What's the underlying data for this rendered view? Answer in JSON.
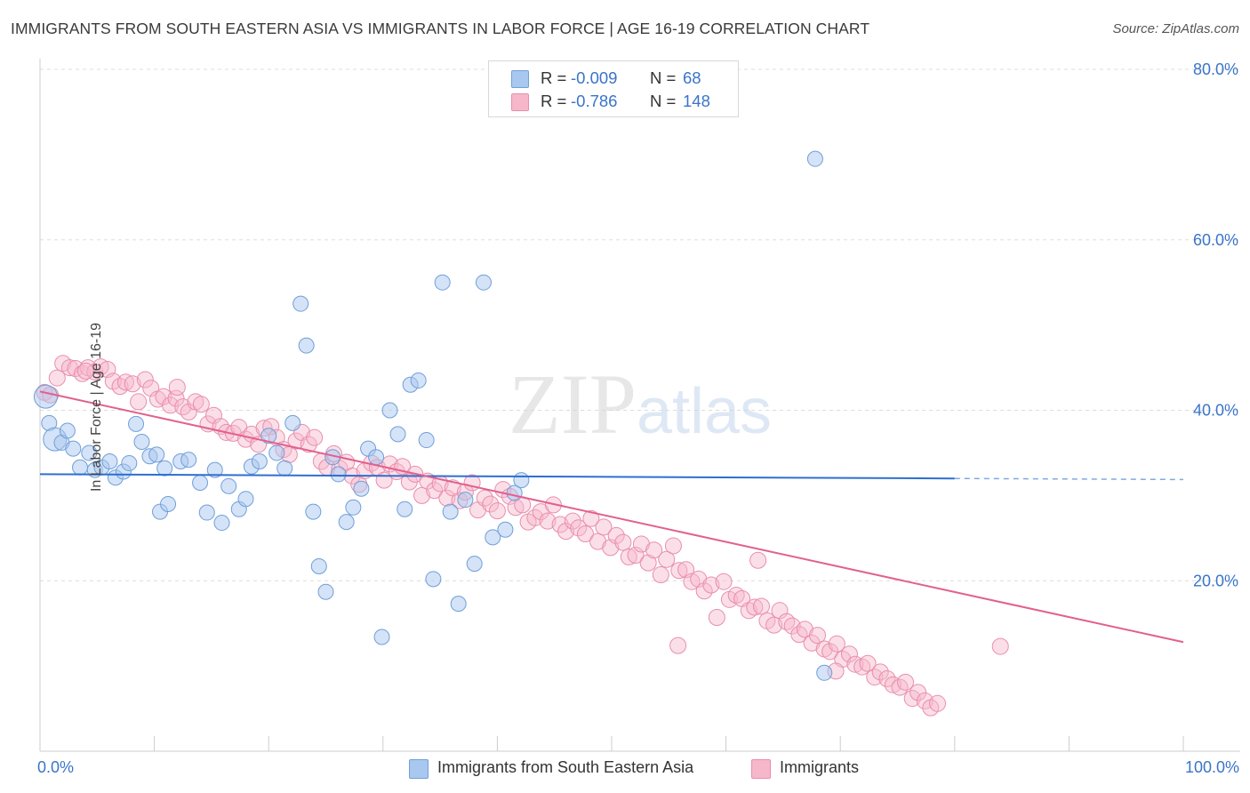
{
  "title": "IMMIGRANTS FROM SOUTH EASTERN ASIA VS IMMIGRANTS IN LABOR FORCE | AGE 16-19 CORRELATION CHART",
  "source": "Source: ZipAtlas.com",
  "watermark": "ZIPatlas",
  "colors": {
    "blue_fill": "#a9c8ef",
    "blue_stroke": "#6f9fd9",
    "blue_line": "#2d6fd0",
    "pink_fill": "#f6b7cb",
    "pink_stroke": "#e98eab",
    "pink_line": "#e2608e",
    "tick_label": "#3a74c9",
    "grid": "#dddddd"
  },
  "legend": {
    "rows": [
      {
        "r_label": "R =",
        "r_value": "-0.009",
        "n_label": "N =",
        "n_value": "68"
      },
      {
        "r_label": "R =",
        "r_value": "-0.786",
        "n_label": "N =",
        "n_value": "148"
      }
    ]
  },
  "bottom_legend": {
    "series1": "Immigrants from South Eastern Asia",
    "series2": "Immigrants"
  },
  "x_axis": {
    "min_label": "0.0%",
    "max_label": "100.0%"
  },
  "chart_data": {
    "type": "scatter",
    "title": "IMMIGRANTS FROM SOUTH EASTERN ASIA VS IMMIGRANTS IN LABOR FORCE | AGE 16-19 CORRELATION CHART",
    "xlabel": "",
    "ylabel": "In Labor Force | Age 16-19",
    "xlim": [
      0,
      100
    ],
    "ylim": [
      0,
      80
    ],
    "y_ticks": [
      20,
      40,
      60,
      80
    ],
    "y_tick_labels": [
      "20.0%",
      "40.0%",
      "60.0%",
      "80.0%"
    ],
    "x_tick_labels": [
      "0.0%",
      "100.0%"
    ],
    "grid": true,
    "legend_position": "top-center",
    "series": [
      {
        "name": "Immigrants from South Eastern Asia",
        "color": "#a9c8ef",
        "trend": {
          "x": [
            0,
            80
          ],
          "y": [
            32.5,
            32.0
          ],
          "dashed_extension_to": 100
        },
        "points": [
          [
            0.5,
            41.6
          ],
          [
            0.8,
            38.5
          ],
          [
            1.3,
            36.6
          ],
          [
            1.9,
            36.2
          ],
          [
            2.4,
            37.6
          ],
          [
            2.9,
            35.5
          ],
          [
            3.5,
            33.3
          ],
          [
            4.3,
            35.0
          ],
          [
            4.8,
            33.0
          ],
          [
            5.4,
            33.3
          ],
          [
            6.1,
            34.0
          ],
          [
            6.6,
            32.1
          ],
          [
            7.3,
            32.8
          ],
          [
            7.8,
            33.8
          ],
          [
            8.4,
            38.4
          ],
          [
            8.9,
            36.3
          ],
          [
            9.6,
            34.6
          ],
          [
            10.2,
            34.8
          ],
          [
            10.5,
            28.1
          ],
          [
            10.9,
            33.2
          ],
          [
            11.2,
            29.0
          ],
          [
            12.3,
            34.0
          ],
          [
            13.0,
            34.2
          ],
          [
            14.0,
            31.5
          ],
          [
            14.6,
            28.0
          ],
          [
            15.3,
            33.0
          ],
          [
            15.9,
            26.8
          ],
          [
            16.5,
            31.1
          ],
          [
            17.4,
            28.4
          ],
          [
            18.0,
            29.6
          ],
          [
            18.5,
            33.4
          ],
          [
            19.2,
            34.0
          ],
          [
            20.0,
            37.0
          ],
          [
            20.7,
            35.0
          ],
          [
            21.4,
            33.2
          ],
          [
            22.1,
            38.5
          ],
          [
            22.8,
            52.5
          ],
          [
            23.3,
            47.6
          ],
          [
            23.9,
            28.1
          ],
          [
            24.4,
            21.7
          ],
          [
            25.0,
            18.7
          ],
          [
            25.6,
            34.5
          ],
          [
            26.1,
            32.5
          ],
          [
            26.8,
            26.9
          ],
          [
            27.4,
            28.6
          ],
          [
            28.1,
            30.8
          ],
          [
            28.7,
            35.5
          ],
          [
            29.4,
            34.5
          ],
          [
            29.9,
            13.4
          ],
          [
            30.6,
            40.0
          ],
          [
            31.3,
            37.2
          ],
          [
            31.9,
            28.4
          ],
          [
            32.4,
            43.0
          ],
          [
            33.1,
            43.5
          ],
          [
            33.8,
            36.5
          ],
          [
            34.4,
            20.2
          ],
          [
            35.2,
            55.0
          ],
          [
            35.9,
            28.1
          ],
          [
            36.6,
            17.3
          ],
          [
            37.2,
            29.5
          ],
          [
            38.0,
            22.0
          ],
          [
            38.8,
            55.0
          ],
          [
            39.6,
            25.1
          ],
          [
            40.7,
            26.0
          ],
          [
            41.5,
            30.3
          ],
          [
            42.1,
            31.8
          ],
          [
            67.8,
            69.5
          ],
          [
            68.6,
            9.2
          ]
        ]
      },
      {
        "name": "Immigrants",
        "color": "#f6b7cb",
        "trend": {
          "x": [
            0,
            100
          ],
          "y": [
            42.2,
            12.8
          ]
        },
        "points": [
          [
            0.4,
            42.1
          ],
          [
            0.9,
            41.8
          ],
          [
            1.5,
            43.8
          ],
          [
            2.0,
            45.5
          ],
          [
            2.6,
            45.0
          ],
          [
            3.1,
            44.9
          ],
          [
            3.7,
            44.3
          ],
          [
            4.2,
            45.0
          ],
          [
            4.8,
            44.5
          ],
          [
            5.3,
            45.1
          ],
          [
            5.9,
            44.8
          ],
          [
            6.4,
            43.4
          ],
          [
            7.0,
            42.8
          ],
          [
            7.5,
            43.3
          ],
          [
            8.1,
            43.1
          ],
          [
            8.6,
            41.0
          ],
          [
            9.2,
            43.6
          ],
          [
            9.7,
            42.6
          ],
          [
            10.3,
            41.3
          ],
          [
            10.8,
            41.6
          ],
          [
            11.4,
            40.6
          ],
          [
            11.9,
            41.4
          ],
          [
            12.5,
            40.4
          ],
          [
            13.0,
            39.8
          ],
          [
            13.6,
            41.0
          ],
          [
            14.1,
            40.7
          ],
          [
            14.7,
            38.4
          ],
          [
            15.2,
            39.4
          ],
          [
            15.8,
            38.1
          ],
          [
            16.3,
            37.4
          ],
          [
            16.9,
            37.3
          ],
          [
            17.4,
            38.0
          ],
          [
            18.0,
            36.6
          ],
          [
            18.5,
            37.2
          ],
          [
            19.1,
            36.0
          ],
          [
            19.6,
            37.9
          ],
          [
            20.2,
            38.1
          ],
          [
            20.7,
            36.8
          ],
          [
            21.3,
            35.4
          ],
          [
            21.8,
            34.8
          ],
          [
            22.4,
            36.4
          ],
          [
            22.9,
            37.4
          ],
          [
            23.5,
            36.0
          ],
          [
            24.0,
            36.8
          ],
          [
            24.6,
            34.0
          ],
          [
            25.1,
            33.3
          ],
          [
            25.7,
            34.9
          ],
          [
            26.2,
            33.2
          ],
          [
            26.8,
            33.9
          ],
          [
            27.3,
            32.3
          ],
          [
            27.9,
            31.3
          ],
          [
            28.4,
            32.9
          ],
          [
            29.0,
            33.8
          ],
          [
            29.5,
            33.3
          ],
          [
            30.1,
            31.8
          ],
          [
            30.6,
            33.7
          ],
          [
            31.2,
            32.8
          ],
          [
            31.7,
            33.4
          ],
          [
            32.3,
            31.6
          ],
          [
            32.8,
            32.5
          ],
          [
            33.4,
            30.0
          ],
          [
            33.9,
            31.7
          ],
          [
            34.5,
            30.6
          ],
          [
            35.0,
            31.4
          ],
          [
            35.6,
            29.7
          ],
          [
            36.1,
            30.9
          ],
          [
            36.7,
            29.4
          ],
          [
            37.2,
            30.4
          ],
          [
            37.8,
            31.5
          ],
          [
            38.3,
            28.3
          ],
          [
            38.9,
            29.7
          ],
          [
            39.4,
            29.0
          ],
          [
            40.0,
            28.2
          ],
          [
            40.5,
            30.7
          ],
          [
            41.1,
            29.9
          ],
          [
            41.6,
            28.6
          ],
          [
            42.2,
            28.9
          ],
          [
            42.7,
            26.9
          ],
          [
            43.3,
            27.4
          ],
          [
            43.8,
            28.1
          ],
          [
            44.4,
            27.0
          ],
          [
            44.9,
            28.9
          ],
          [
            45.5,
            26.6
          ],
          [
            46.0,
            25.8
          ],
          [
            46.6,
            27.0
          ],
          [
            47.1,
            26.2
          ],
          [
            47.7,
            25.5
          ],
          [
            48.2,
            27.3
          ],
          [
            48.8,
            24.6
          ],
          [
            49.3,
            26.3
          ],
          [
            49.9,
            23.9
          ],
          [
            50.4,
            25.3
          ],
          [
            51.0,
            24.5
          ],
          [
            51.5,
            22.8
          ],
          [
            52.1,
            23.0
          ],
          [
            52.6,
            24.3
          ],
          [
            53.2,
            22.1
          ],
          [
            53.7,
            23.6
          ],
          [
            54.3,
            20.7
          ],
          [
            54.8,
            22.5
          ],
          [
            55.4,
            24.1
          ],
          [
            55.9,
            21.2
          ],
          [
            56.5,
            21.3
          ],
          [
            57.0,
            19.9
          ],
          [
            57.6,
            20.2
          ],
          [
            58.1,
            18.8
          ],
          [
            58.7,
            19.5
          ],
          [
            59.2,
            15.7
          ],
          [
            59.8,
            19.9
          ],
          [
            60.3,
            17.8
          ],
          [
            60.9,
            18.3
          ],
          [
            61.4,
            17.9
          ],
          [
            62.0,
            16.5
          ],
          [
            62.5,
            16.9
          ],
          [
            63.1,
            17.0
          ],
          [
            63.6,
            15.3
          ],
          [
            64.2,
            14.8
          ],
          [
            64.7,
            16.5
          ],
          [
            65.3,
            15.2
          ],
          [
            65.8,
            14.7
          ],
          [
            66.4,
            13.7
          ],
          [
            66.9,
            14.3
          ],
          [
            67.5,
            12.7
          ],
          [
            68.0,
            13.6
          ],
          [
            68.6,
            12.0
          ],
          [
            69.1,
            11.7
          ],
          [
            69.7,
            12.6
          ],
          [
            70.2,
            10.8
          ],
          [
            70.8,
            11.4
          ],
          [
            71.3,
            10.2
          ],
          [
            71.9,
            9.9
          ],
          [
            72.4,
            10.3
          ],
          [
            73.0,
            8.7
          ],
          [
            73.5,
            9.3
          ],
          [
            74.1,
            8.5
          ],
          [
            74.6,
            7.8
          ],
          [
            75.2,
            7.5
          ],
          [
            75.7,
            8.1
          ],
          [
            76.3,
            6.2
          ],
          [
            76.8,
            6.9
          ],
          [
            77.4,
            5.9
          ],
          [
            77.9,
            5.1
          ],
          [
            78.5,
            5.6
          ],
          [
            84.0,
            12.3
          ],
          [
            4.0,
            44.6
          ],
          [
            12.0,
            42.7
          ],
          [
            55.8,
            12.4
          ],
          [
            62.8,
            22.4
          ],
          [
            69.6,
            9.4
          ]
        ]
      }
    ]
  }
}
